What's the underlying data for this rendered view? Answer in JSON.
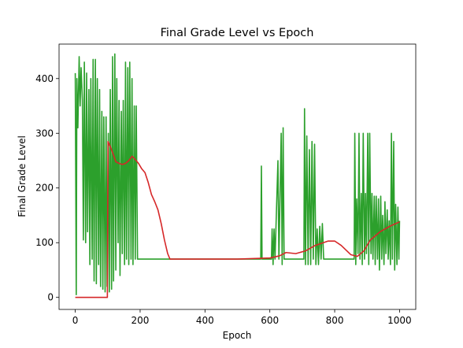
{
  "chart_data": {
    "type": "line",
    "title": "Final Grade Level vs Epoch",
    "xlabel": "Epoch",
    "ylabel": "Final Grade Level",
    "xlim": [
      -50,
      1050
    ],
    "ylim": [
      -22,
      463
    ],
    "xticks": [
      0,
      200,
      400,
      600,
      800,
      1000
    ],
    "yticks": [
      0,
      100,
      200,
      300,
      400
    ],
    "series": [
      {
        "color": "#2ca02c",
        "x": [
          0,
          3,
          5,
          8,
          12,
          15,
          18,
          22,
          25,
          28,
          32,
          35,
          38,
          42,
          45,
          48,
          52,
          55,
          58,
          62,
          65,
          68,
          72,
          75,
          78,
          82,
          85,
          88,
          92,
          95,
          98,
          102,
          105,
          108,
          112,
          115,
          118,
          122,
          125,
          128,
          132,
          135,
          138,
          142,
          145,
          148,
          152,
          155,
          158,
          162,
          165,
          168,
          172,
          175,
          178,
          182,
          185,
          188,
          192,
          195,
          200,
          572,
          574,
          576,
          605,
          607,
          610,
          613,
          616,
          625,
          628,
          635,
          638,
          641,
          644,
          660,
          705,
          707,
          710,
          714,
          718,
          722,
          726,
          730,
          734,
          738,
          742,
          746,
          750,
          754,
          758,
          762,
          766,
          860,
          862,
          865,
          868,
          872,
          875,
          878,
          882,
          885,
          888,
          892,
          895,
          898,
          902,
          905,
          908,
          912,
          915,
          918,
          922,
          925,
          928,
          932,
          935,
          938,
          942,
          945,
          948,
          952,
          955,
          958,
          962,
          965,
          968,
          972,
          975,
          978,
          982,
          985,
          988,
          992,
          995,
          998,
          1000
        ],
        "values": [
          410,
          5,
          400,
          310,
          440,
          350,
          420,
          360,
          105,
          430,
          100,
          410,
          120,
          380,
          60,
          400,
          70,
          435,
          30,
          435,
          25,
          400,
          60,
          380,
          20,
          340,
          15,
          330,
          10,
          330,
          20,
          300,
          10,
          380,
          15,
          440,
          30,
          445,
          50,
          400,
          100,
          360,
          40,
          340,
          80,
          360,
          60,
          430,
          70,
          420,
          60,
          430,
          70,
          400,
          60,
          350,
          70,
          350,
          70,
          70,
          70,
          70,
          240,
          70,
          70,
          125,
          60,
          125,
          70,
          250,
          70,
          300,
          60,
          310,
          70,
          70,
          70,
          345,
          60,
          295,
          60,
          270,
          60,
          285,
          70,
          280,
          60,
          125,
          60,
          130,
          70,
          135,
          70,
          70,
          300,
          60,
          180,
          80,
          300,
          70,
          190,
          60,
          300,
          70,
          190,
          80,
          300,
          60,
          300,
          80,
          190,
          70,
          185,
          60,
          185,
          70,
          180,
          50,
          185,
          70,
          150,
          60,
          175,
          80,
          160,
          70,
          140,
          60,
          300,
          70,
          285,
          50,
          170,
          60,
          165,
          70,
          140
        ]
      },
      {
        "color": "#d62728",
        "x": [
          0,
          99,
          101,
          105,
          115,
          125,
          135,
          145,
          155,
          165,
          175,
          185,
          195,
          205,
          215,
          225,
          235,
          245,
          255,
          265,
          275,
          285,
          292,
          300,
          400,
          500,
          600,
          630,
          650,
          680,
          710,
          740,
          780,
          800,
          820,
          850,
          870,
          890,
          910,
          940,
          970,
          1000
        ],
        "values": [
          0,
          0,
          285,
          280,
          265,
          248,
          245,
          243,
          245,
          250,
          258,
          252,
          245,
          235,
          228,
          210,
          188,
          175,
          160,
          135,
          105,
          80,
          70,
          70,
          70,
          70,
          72,
          76,
          82,
          80,
          85,
          95,
          103,
          103,
          95,
          78,
          75,
          85,
          105,
          120,
          130,
          138
        ]
      }
    ]
  }
}
